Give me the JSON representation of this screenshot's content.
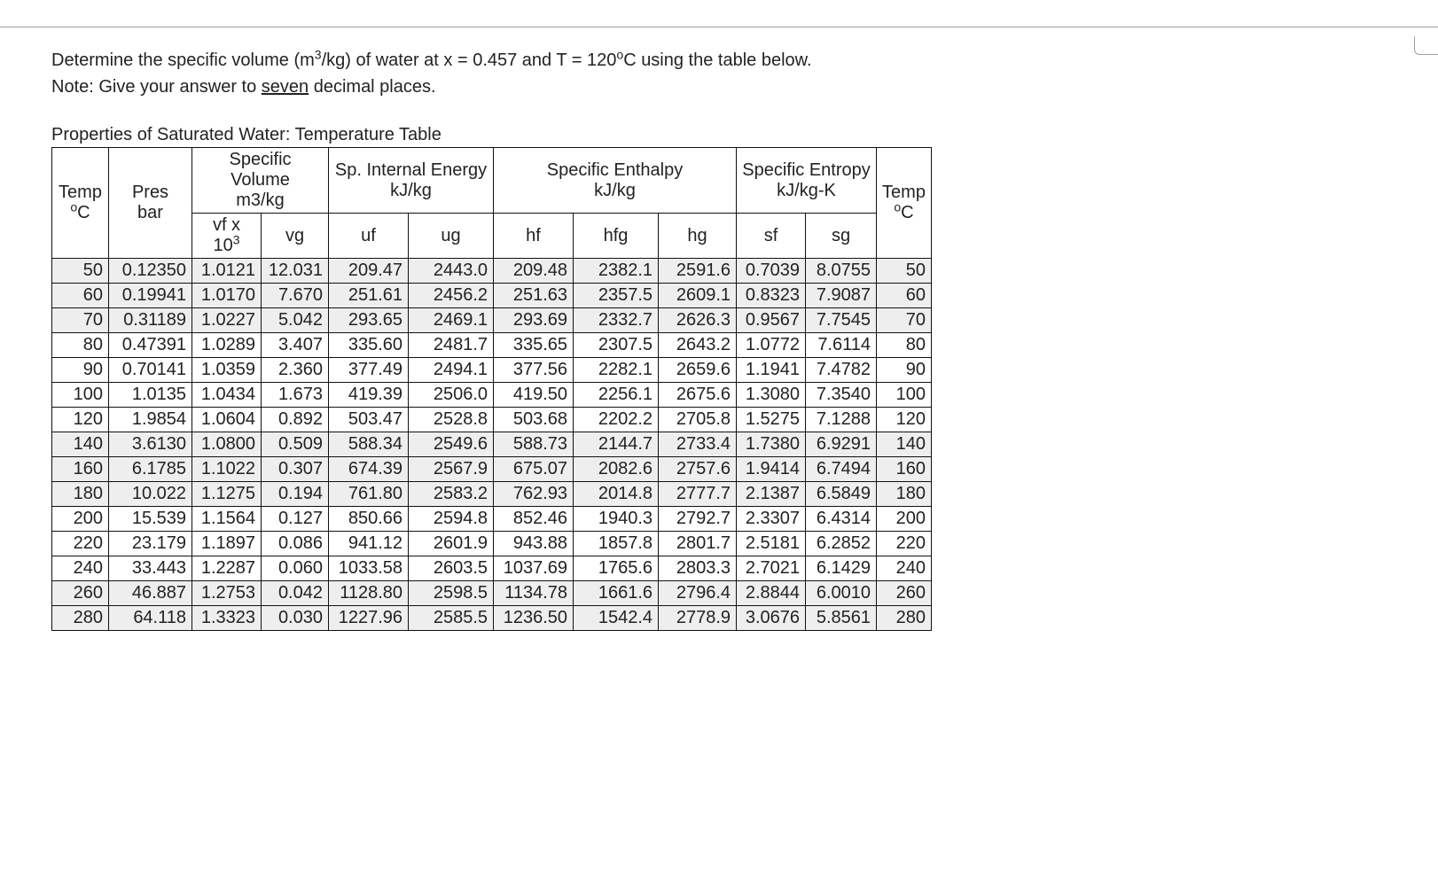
{
  "question": {
    "line1_pre": "Determine the specific volume (m",
    "line1_sup": "3",
    "line1_mid": "/kg) of water at x = 0.457 and T = 120",
    "line1_sup2": "o",
    "line1_post": "C using the table below.",
    "line2_pre": "Note: Give your answer to ",
    "line2_underline": "seven",
    "line2_post": " decimal places."
  },
  "table": {
    "title": "Properties of Saturated Water: Temperature Table",
    "headers": {
      "specific_volume": "Specific Volume",
      "specific_volume_unit": "m3/kg",
      "sp_internal_energy": "Sp. Internal Energy",
      "sp_internal_energy_unit": "kJ/kg",
      "specific_enthalpy": "Specific Enthalpy",
      "specific_enthalpy_unit": "kJ/kg",
      "specific_entropy": "Specific Entropy",
      "specific_entropy_unit": "kJ/kg-K",
      "temp": "Temp",
      "temp_unit_pre": "",
      "temp_unit_sup": "o",
      "temp_unit_post": "C",
      "pres": "Pres",
      "pres_unit": "bar",
      "vf": "vf x 10",
      "vf_sup": "3",
      "vg": "vg",
      "uf": "uf",
      "ug": "ug",
      "hf": "hf",
      "hfg": "hfg",
      "hg": "hg",
      "sf": "sf",
      "sg": "sg"
    },
    "shaded_rows": [
      0,
      1,
      2,
      7,
      8,
      9,
      13,
      14,
      15
    ],
    "rows": [
      {
        "temp": "50",
        "pres": "0.12350",
        "vf": "1.0121",
        "vg": "12.031",
        "uf": "209.47",
        "ug": "2443.0",
        "hf": "209.48",
        "hfg": "2382.1",
        "hg": "2591.6",
        "sf": "0.7039",
        "sg": "8.0755",
        "tempR": "50"
      },
      {
        "temp": "60",
        "pres": "0.19941",
        "vf": "1.0170",
        "vg": "7.670",
        "uf": "251.61",
        "ug": "2456.2",
        "hf": "251.63",
        "hfg": "2357.5",
        "hg": "2609.1",
        "sf": "0.8323",
        "sg": "7.9087",
        "tempR": "60"
      },
      {
        "temp": "70",
        "pres": "0.31189",
        "vf": "1.0227",
        "vg": "5.042",
        "uf": "293.65",
        "ug": "2469.1",
        "hf": "293.69",
        "hfg": "2332.7",
        "hg": "2626.3",
        "sf": "0.9567",
        "sg": "7.7545",
        "tempR": "70"
      },
      {
        "temp": "80",
        "pres": "0.47391",
        "vf": "1.0289",
        "vg": "3.407",
        "uf": "335.60",
        "ug": "2481.7",
        "hf": "335.65",
        "hfg": "2307.5",
        "hg": "2643.2",
        "sf": "1.0772",
        "sg": "7.6114",
        "tempR": "80"
      },
      {
        "temp": "90",
        "pres": "0.70141",
        "vf": "1.0359",
        "vg": "2.360",
        "uf": "377.49",
        "ug": "2494.1",
        "hf": "377.56",
        "hfg": "2282.1",
        "hg": "2659.6",
        "sf": "1.1941",
        "sg": "7.4782",
        "tempR": "90"
      },
      {
        "temp": "100",
        "pres": "1.0135",
        "vf": "1.0434",
        "vg": "1.673",
        "uf": "419.39",
        "ug": "2506.0",
        "hf": "419.50",
        "hfg": "2256.1",
        "hg": "2675.6",
        "sf": "1.3080",
        "sg": "7.3540",
        "tempR": "100"
      },
      {
        "temp": "120",
        "pres": "1.9854",
        "vf": "1.0604",
        "vg": "0.892",
        "uf": "503.47",
        "ug": "2528.8",
        "hf": "503.68",
        "hfg": "2202.2",
        "hg": "2705.8",
        "sf": "1.5275",
        "sg": "7.1288",
        "tempR": "120"
      },
      {
        "temp": "140",
        "pres": "3.6130",
        "vf": "1.0800",
        "vg": "0.509",
        "uf": "588.34",
        "ug": "2549.6",
        "hf": "588.73",
        "hfg": "2144.7",
        "hg": "2733.4",
        "sf": "1.7380",
        "sg": "6.9291",
        "tempR": "140"
      },
      {
        "temp": "160",
        "pres": "6.1785",
        "vf": "1.1022",
        "vg": "0.307",
        "uf": "674.39",
        "ug": "2567.9",
        "hf": "675.07",
        "hfg": "2082.6",
        "hg": "2757.6",
        "sf": "1.9414",
        "sg": "6.7494",
        "tempR": "160"
      },
      {
        "temp": "180",
        "pres": "10.022",
        "vf": "1.1275",
        "vg": "0.194",
        "uf": "761.80",
        "ug": "2583.2",
        "hf": "762.93",
        "hfg": "2014.8",
        "hg": "2777.7",
        "sf": "2.1387",
        "sg": "6.5849",
        "tempR": "180"
      },
      {
        "temp": "200",
        "pres": "15.539",
        "vf": "1.1564",
        "vg": "0.127",
        "uf": "850.66",
        "ug": "2594.8",
        "hf": "852.46",
        "hfg": "1940.3",
        "hg": "2792.7",
        "sf": "2.3307",
        "sg": "6.4314",
        "tempR": "200"
      },
      {
        "temp": "220",
        "pres": "23.179",
        "vf": "1.1897",
        "vg": "0.086",
        "uf": "941.12",
        "ug": "2601.9",
        "hf": "943.88",
        "hfg": "1857.8",
        "hg": "2801.7",
        "sf": "2.5181",
        "sg": "6.2852",
        "tempR": "220"
      },
      {
        "temp": "240",
        "pres": "33.443",
        "vf": "1.2287",
        "vg": "0.060",
        "uf": "1033.58",
        "ug": "2603.5",
        "hf": "1037.69",
        "hfg": "1765.6",
        "hg": "2803.3",
        "sf": "2.7021",
        "sg": "6.1429",
        "tempR": "240"
      },
      {
        "temp": "260",
        "pres": "46.887",
        "vf": "1.2753",
        "vg": "0.042",
        "uf": "1128.80",
        "ug": "2598.5",
        "hf": "1134.78",
        "hfg": "1661.6",
        "hg": "2796.4",
        "sf": "2.8844",
        "sg": "6.0010",
        "tempR": "260"
      },
      {
        "temp": "280",
        "pres": "64.118",
        "vf": "1.3323",
        "vg": "0.030",
        "uf": "1227.96",
        "ug": "2585.5",
        "hf": "1236.50",
        "hfg": "1542.4",
        "hg": "2778.9",
        "sf": "3.0676",
        "sg": "5.8561",
        "tempR": "280"
      }
    ]
  },
  "style": {
    "shade_bg": "#eeeeee",
    "border_color": "#111111",
    "font_size_body": 20
  }
}
